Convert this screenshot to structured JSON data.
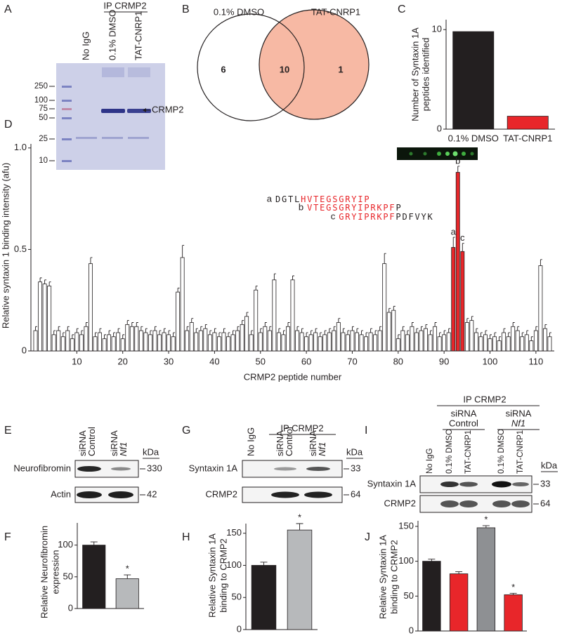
{
  "figure": {
    "gel": {
      "panel": "A",
      "header": "IP CRMP2",
      "lanes": [
        "No IgG",
        "0.1% DMSO",
        "TAT-CNRP1"
      ],
      "markers": [
        250,
        100,
        75,
        50,
        25,
        10
      ],
      "band": "CRMP2"
    },
    "blot_e": {
      "panel": "E",
      "lanes": [
        [
          "siRNA",
          "Control"
        ],
        [
          "siRNA",
          "Nf1"
        ]
      ],
      "unit": "kDa",
      "rows": [
        {
          "name": "Neurofibromin",
          "size": 330
        },
        {
          "name": "Actin",
          "size": 42
        }
      ]
    },
    "blot_g": {
      "panel": "G",
      "header": "IP CRMP2",
      "lanes": [
        [
          "No IgG"
        ],
        [
          "siRNA",
          "Control"
        ],
        [
          "siRNA",
          "Nf1"
        ]
      ],
      "unit": "kDa",
      "rows": [
        {
          "name": "Syntaxin 1A",
          "size": 33
        },
        {
          "name": "CRMP2",
          "size": 64
        }
      ]
    },
    "blot_i": {
      "panel": "I",
      "header": "IP CRMP2",
      "groups": [
        [
          "siRNA",
          "Control"
        ],
        [
          "siRNA",
          "Nf1"
        ]
      ],
      "lanes": [
        "No IgG",
        "0.1% DMSO",
        "TAT-CNRP1",
        "0.1% DMSO",
        "TAT-CNRP1"
      ],
      "unit": "kDa",
      "rows": [
        {
          "name": "Syntaxin 1A",
          "size": 33
        },
        {
          "name": "CRMP2",
          "size": 64
        }
      ]
    }
  },
  "chart_data": [
    {
      "type": "venn",
      "panel": "B",
      "sets": [
        "0.1% DMSO",
        "TAT-CNRP1"
      ],
      "values": [
        6,
        10,
        1
      ],
      "color": "#f7b9a4"
    },
    {
      "type": "bar",
      "panel": "C",
      "ylabel": [
        "Number of Syntaxin 1A",
        "peptides identified"
      ],
      "categories": [
        "0.1% DMSO",
        "TAT-CNRP1"
      ],
      "values": [
        9.8,
        1.3
      ],
      "colors": [
        "#231f20",
        "#e8262a"
      ],
      "ylim": [
        0,
        11
      ],
      "yticks": [
        0,
        10
      ]
    },
    {
      "type": "bar",
      "panel": "D",
      "ylabel": "Relative syntaxin 1 binding intensity (afu)",
      "xlabel": "CRMP2 peptide number",
      "x": [
        1,
        2,
        3,
        4,
        5,
        6,
        7,
        8,
        9,
        10,
        11,
        12,
        13,
        14,
        15,
        16,
        17,
        18,
        19,
        20,
        21,
        22,
        23,
        24,
        25,
        26,
        27,
        28,
        29,
        30,
        31,
        32,
        33,
        34,
        35,
        36,
        37,
        38,
        39,
        40,
        41,
        42,
        43,
        44,
        45,
        46,
        47,
        48,
        49,
        50,
        51,
        52,
        53,
        54,
        55,
        56,
        57,
        58,
        59,
        60,
        61,
        62,
        63,
        64,
        65,
        66,
        67,
        68,
        69,
        70,
        71,
        72,
        73,
        74,
        75,
        76,
        77,
        78,
        79,
        80,
        81,
        82,
        83,
        84,
        85,
        86,
        87,
        88,
        89,
        90,
        91,
        92,
        93,
        94,
        95,
        96,
        97,
        98,
        99,
        100,
        101,
        102,
        103,
        104,
        105,
        106,
        107,
        108,
        109,
        110,
        111,
        112,
        113
      ],
      "values": [
        0.1,
        0.34,
        0.33,
        0.32,
        0.08,
        0.1,
        0.07,
        0.1,
        0.06,
        0.09,
        0.08,
        0.12,
        0.43,
        0.07,
        0.09,
        0.06,
        0.08,
        0.07,
        0.09,
        0.06,
        0.13,
        0.12,
        0.12,
        0.1,
        0.09,
        0.08,
        0.1,
        0.08,
        0.09,
        0.08,
        0.07,
        0.29,
        0.46,
        0.1,
        0.14,
        0.09,
        0.1,
        0.11,
        0.08,
        0.09,
        0.07,
        0.09,
        0.07,
        0.08,
        0.1,
        0.13,
        0.17,
        0.08,
        0.3,
        0.09,
        0.12,
        0.1,
        0.35,
        0.09,
        0.08,
        0.12,
        0.35,
        0.1,
        0.09,
        0.07,
        0.08,
        0.09,
        0.07,
        0.08,
        0.09,
        0.1,
        0.14,
        0.09,
        0.08,
        0.1,
        0.09,
        0.08,
        0.07,
        0.09,
        0.08,
        0.1,
        0.43,
        0.19,
        0.2,
        0.06,
        0.1,
        0.08,
        0.12,
        0.09,
        0.1,
        0.11,
        0.08,
        0.12,
        0.07,
        0.08,
        0.09,
        0.51,
        0.88,
        0.49,
        0.14,
        0.15,
        0.09,
        0.07,
        0.08,
        0.06,
        0.07,
        0.05,
        0.09,
        0.07,
        0.12,
        0.1,
        0.07,
        0.08,
        0.05,
        0.1,
        0.42,
        0.11,
        0.07
      ],
      "errors": [
        0.02,
        0.02,
        0.02,
        0.02,
        0.02,
        0.02,
        0.02,
        0.02,
        0.02,
        0.02,
        0.02,
        0.02,
        0.03,
        0.02,
        0.02,
        0.02,
        0.02,
        0.02,
        0.02,
        0.02,
        0.02,
        0.02,
        0.02,
        0.02,
        0.02,
        0.02,
        0.02,
        0.02,
        0.02,
        0.02,
        0.02,
        0.02,
        0.06,
        0.02,
        0.02,
        0.02,
        0.02,
        0.02,
        0.02,
        0.02,
        0.02,
        0.02,
        0.02,
        0.02,
        0.02,
        0.02,
        0.02,
        0.02,
        0.02,
        0.02,
        0.02,
        0.02,
        0.03,
        0.02,
        0.02,
        0.02,
        0.02,
        0.02,
        0.02,
        0.02,
        0.02,
        0.02,
        0.02,
        0.02,
        0.02,
        0.02,
        0.02,
        0.02,
        0.02,
        0.02,
        0.02,
        0.02,
        0.02,
        0.02,
        0.02,
        0.02,
        0.05,
        0.02,
        0.02,
        0.02,
        0.02,
        0.02,
        0.02,
        0.02,
        0.02,
        0.02,
        0.02,
        0.02,
        0.02,
        0.02,
        0.02,
        0.05,
        0.03,
        0.04,
        0.02,
        0.02,
        0.02,
        0.02,
        0.02,
        0.02,
        0.02,
        0.02,
        0.02,
        0.02,
        0.02,
        0.02,
        0.02,
        0.02,
        0.02,
        0.02,
        0.03,
        0.02,
        0.02
      ],
      "color": "#ffffff",
      "highlight": [
        92,
        93,
        94
      ],
      "highlight_color": "#e8262a",
      "point_labels": [
        {
          "x": 92,
          "label": "a"
        },
        {
          "x": 93,
          "label": "b"
        },
        {
          "x": 94,
          "label": "c"
        }
      ],
      "sequences": [
        {
          "id": "a",
          "parts": [
            {
              "text": "DGTL",
              "color": "#231f20"
            },
            {
              "text": "HVTEGSGRYIP",
              "color": "#e8262a"
            }
          ]
        },
        {
          "id": "b",
          "parts": [
            {
              "text": "VTEGSGRYIPRKPF",
              "color": "#e8262a"
            },
            {
              "text": "P",
              "color": "#231f20"
            }
          ]
        },
        {
          "id": "c",
          "parts": [
            {
              "text": "GRYIPRKPF",
              "color": "#e8262a"
            },
            {
              "text": "PDFVYK",
              "color": "#231f20"
            }
          ]
        }
      ],
      "xlim": [
        0,
        114
      ],
      "ylim": [
        0,
        1.02
      ],
      "xticks": [
        10,
        20,
        30,
        40,
        50,
        60,
        70,
        80,
        90,
        100,
        110
      ],
      "yticks": [
        0,
        0.5,
        {
          "value": 1,
          "label": "1.0"
        }
      ]
    },
    {
      "type": "bar",
      "panel": "F",
      "ylabel": [
        "Relative Neurofibromin",
        "expression"
      ],
      "categories": [
        null,
        null
      ],
      "values": [
        100,
        47
      ],
      "errors": [
        5,
        6
      ],
      "colors": [
        "#231f20",
        "#b7b9bb"
      ],
      "significance": [
        null,
        "*"
      ],
      "ylim": [
        0,
        135
      ],
      "yticks": [
        0,
        50,
        100
      ]
    },
    {
      "type": "bar",
      "panel": "H",
      "ylabel": [
        "Relative Syntaxin 1A",
        "binding to CRMP2"
      ],
      "categories": [
        null,
        null
      ],
      "values": [
        100,
        155
      ],
      "errors": [
        5,
        10
      ],
      "colors": [
        "#231f20",
        "#b7b9bb"
      ],
      "significance": [
        null,
        "*"
      ],
      "ylim": [
        0,
        165
      ],
      "yticks": [
        0,
        50,
        100,
        150
      ]
    },
    {
      "type": "bar",
      "panel": "J",
      "ylabel": [
        "Relative Syntaxin 1A",
        "binding to CRMP2"
      ],
      "categories": [
        null,
        null,
        null,
        null
      ],
      "values": [
        100,
        82,
        148,
        52
      ],
      "errors": [
        3,
        3,
        3,
        2
      ],
      "colors": [
        "#231f20",
        "#e8262a",
        "#8e9093",
        "#e8262a"
      ],
      "significance": [
        null,
        null,
        "*",
        "*"
      ],
      "ylim": [
        0,
        158
      ],
      "yticks": [
        0,
        50,
        100,
        150
      ]
    }
  ]
}
